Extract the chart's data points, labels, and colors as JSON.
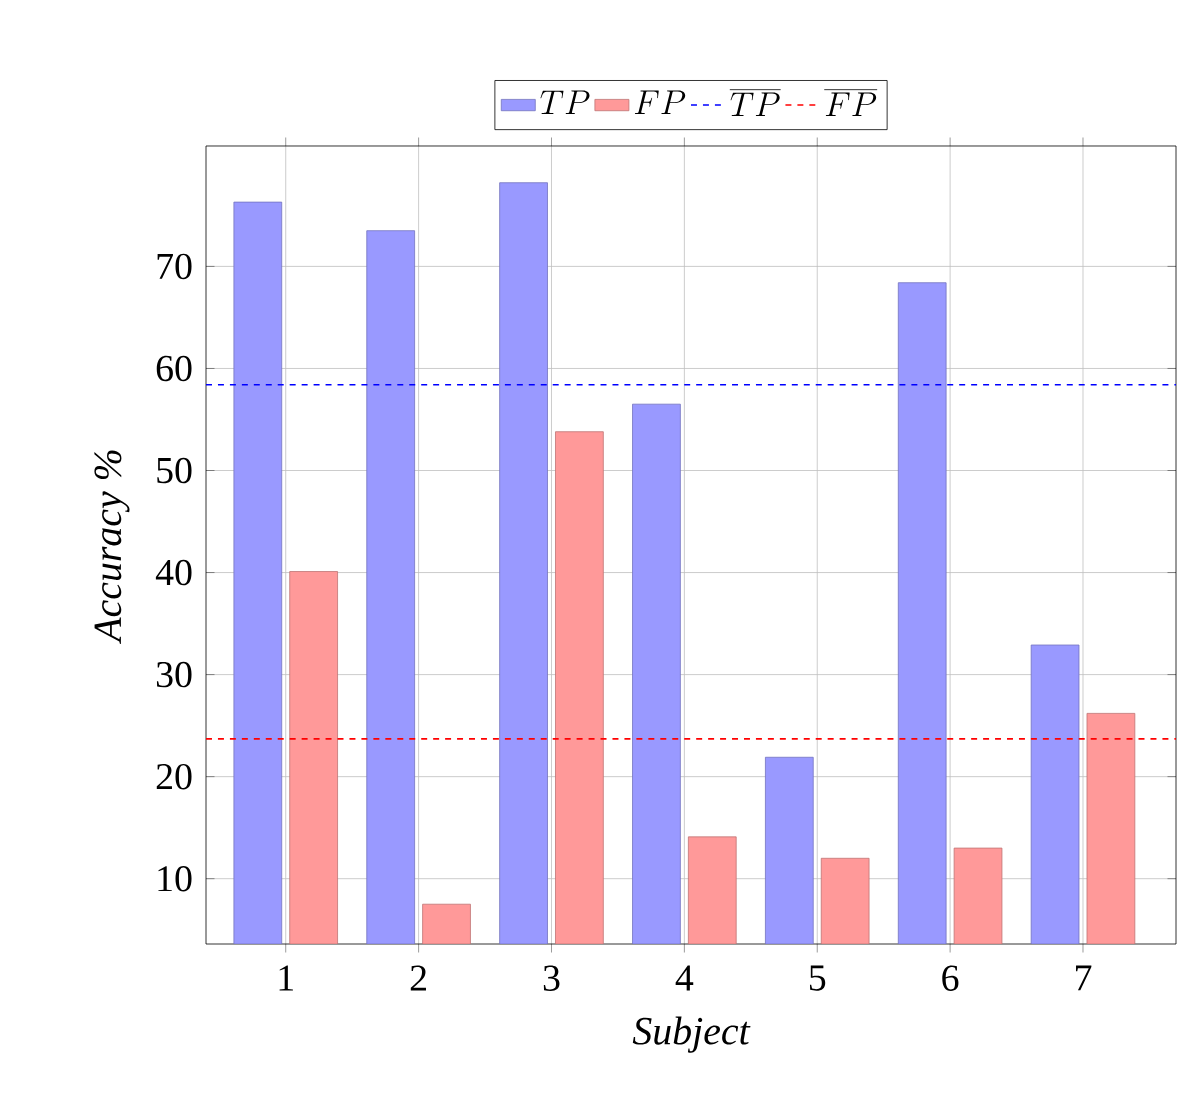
{
  "chart_data": {
    "type": "bar",
    "xlabel": "Subject",
    "ylabel": "Accuracy %",
    "categories": [
      "1",
      "2",
      "3",
      "4",
      "5",
      "6",
      "7"
    ],
    "series": [
      {
        "name": "TP",
        "color": "#9999ff",
        "values": [
          76.3,
          73.5,
          78.2,
          56.5,
          21.9,
          68.4,
          32.9
        ]
      },
      {
        "name": "FP",
        "color": "#ff9999",
        "values": [
          40.1,
          7.5,
          53.8,
          14.1,
          12.0,
          13.0,
          26.2
        ]
      }
    ],
    "ref_lines": [
      {
        "axis": "y",
        "value": 58.4,
        "label": "\\overline{TP}",
        "color": "#0000ff",
        "line_style": "dashed"
      },
      {
        "axis": "y",
        "value": 23.7,
        "label": "\\overline{FP}",
        "color": "#ff0000",
        "line_style": "dashed"
      }
    ],
    "ylim": [
      3.6,
      81.8
    ],
    "yticks": [
      10,
      20,
      30,
      40,
      50,
      60,
      70
    ],
    "grid": true,
    "legend": "top"
  }
}
